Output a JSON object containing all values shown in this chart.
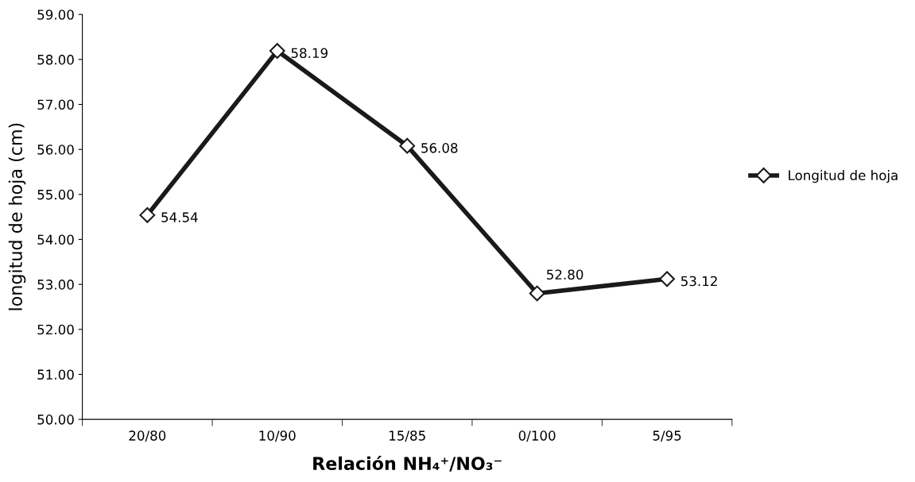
{
  "chart_data": {
    "type": "line",
    "xlabel": "Relación NH₄⁺/NO₃⁻",
    "ylabel": "longitud de hoja (cm)",
    "categories": [
      "20/80",
      "10/90",
      "15/85",
      "0/100",
      "5/95"
    ],
    "series": [
      {
        "name": "Longitud de hoja",
        "color": "#1a1a1a",
        "values": [
          54.54,
          58.19,
          56.08,
          52.8,
          53.12
        ],
        "value_labels": [
          "54.54",
          "58.19",
          "56.08",
          "52.80",
          "53.12"
        ]
      }
    ],
    "ylim": [
      50,
      59
    ],
    "yticks": [
      {
        "value": 50,
        "label": "50.00"
      },
      {
        "value": 51,
        "label": "51.00"
      },
      {
        "value": 52,
        "label": "52.00"
      },
      {
        "value": 53,
        "label": "53.00"
      },
      {
        "value": 54,
        "label": "54.00"
      },
      {
        "value": 55,
        "label": "55.00"
      },
      {
        "value": 56,
        "label": "56.00"
      },
      {
        "value": 57,
        "label": "57.00"
      },
      {
        "value": 58,
        "label": "58.00"
      },
      {
        "value": 59,
        "label": "59.00"
      }
    ],
    "grid": false,
    "legend": "right",
    "marker": "diamond",
    "line_style": "solid"
  }
}
